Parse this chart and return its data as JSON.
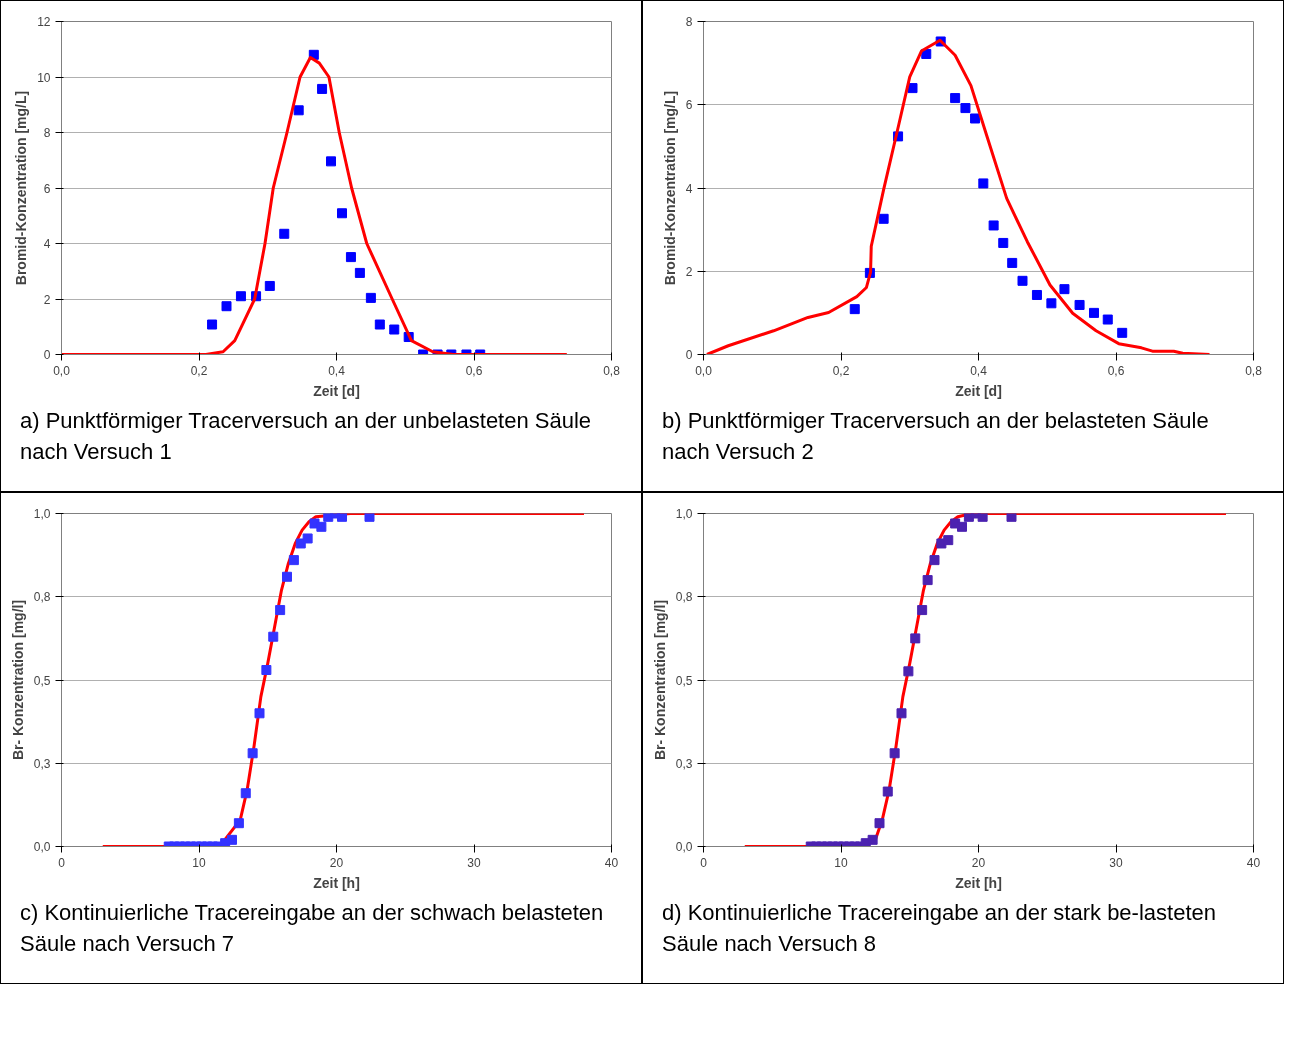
{
  "chart_data": [
    {
      "type": "scatter",
      "xlabel": "Zeit [d]",
      "ylabel": "Bromid-Konzentration [mg/L]",
      "xlim": [
        0,
        0.8
      ],
      "ylim": [
        0,
        12
      ],
      "xticks": [
        {
          "value": 0,
          "label": "0,0"
        },
        {
          "value": 0.2,
          "label": "0,2"
        },
        {
          "value": 0.4,
          "label": "0,4"
        },
        {
          "value": 0.6,
          "label": "0,6"
        },
        {
          "value": 0.8,
          "label": "0,8"
        }
      ],
      "yticks": [
        0,
        2,
        4,
        6,
        8,
        10,
        12
      ],
      "grid": "y",
      "annotations": [
        "a) Punktförmiger Tracerversuch an der unbelasteten Säule nach Versuch 1"
      ],
      "series": [
        {
          "marker": "square",
          "color": "#0000ff",
          "x": [
            0.219,
            0.24,
            0.261,
            0.283,
            0.303,
            0.324,
            0.345,
            0.367,
            0.379,
            0.392,
            0.408,
            0.421,
            0.434,
            0.45,
            0.463,
            0.484,
            0.505,
            0.526,
            0.547,
            0.567,
            0.589,
            0.609
          ],
          "values": [
            1.08,
            1.74,
            2.1,
            2.1,
            2.47,
            4.35,
            8.8,
            10.8,
            9.57,
            6.96,
            5.09,
            3.51,
            2.94,
            2.04,
            1.08,
            0.9,
            0.63,
            0,
            0,
            0,
            0,
            0
          ]
        },
        {
          "type": "line",
          "color": "#ff0000",
          "x": [
            0,
            0.21,
            0.235,
            0.252,
            0.281,
            0.296,
            0.308,
            0.328,
            0.347,
            0.362,
            0.375,
            0.389,
            0.404,
            0.422,
            0.444,
            0.481,
            0.509,
            0.54,
            0.57,
            0.735
          ],
          "values": [
            0,
            0,
            0.1,
            0.5,
            2,
            4,
            6,
            8,
            10,
            10.7,
            10.5,
            10,
            8,
            6,
            4,
            2,
            0.5,
            0.1,
            0,
            0
          ]
        }
      ]
    },
    {
      "type": "scatter",
      "xlabel": "Zeit [d]",
      "ylabel": "Bromid-Konzentration [mg/L]",
      "xlim": [
        0,
        0.8
      ],
      "ylim": [
        0,
        8
      ],
      "xticks": [
        {
          "value": 0,
          "label": "0,0"
        },
        {
          "value": 0.2,
          "label": "0,2"
        },
        {
          "value": 0.4,
          "label": "0,4"
        },
        {
          "value": 0.6,
          "label": "0,6"
        },
        {
          "value": 0.8,
          "label": "0,8"
        }
      ],
      "yticks": [
        0,
        2,
        4,
        6,
        8
      ],
      "grid": "y",
      "annotations": [
        "b) Punktförmiger Tracerversuch an der belasteten Säule nach Versuch 2"
      ],
      "series": [
        {
          "marker": "square",
          "color": "#0000ff",
          "x": [
            0.22,
            0.242,
            0.262,
            0.283,
            0.304,
            0.324,
            0.345,
            0.366,
            0.381,
            0.395,
            0.407,
            0.422,
            0.436,
            0.449,
            0.464,
            0.485,
            0.506,
            0.525,
            0.547,
            0.568,
            0.588,
            0.609
          ],
          "values": [
            1.09,
            1.96,
            3.26,
            5.24,
            6.4,
            7.22,
            7.52,
            6.16,
            5.92,
            5.67,
            4.11,
            3.1,
            2.68,
            2.2,
            1.77,
            1.43,
            1.23,
            1.57,
            1.19,
            1.0,
            0.84,
            0.52
          ]
        },
        {
          "type": "line",
          "color": "#ff0000",
          "x": [
            0.005,
            0.036,
            0.102,
            0.152,
            0.182,
            0.223,
            0.237,
            0.243,
            0.244,
            0.262,
            0.284,
            0.3,
            0.317,
            0.344,
            0.366,
            0.389,
            0.411,
            0.441,
            0.471,
            0.504,
            0.537,
            0.571,
            0.604,
            0.637,
            0.653,
            0.684,
            0.697,
            0.736
          ],
          "values": [
            0,
            0.21,
            0.57,
            0.89,
            1.01,
            1.39,
            1.61,
            1.98,
            2.6,
            3.96,
            5.52,
            6.67,
            7.29,
            7.55,
            7.19,
            6.46,
            5.31,
            3.75,
            2.71,
            1.67,
            0.99,
            0.57,
            0.26,
            0.16,
            0.08,
            0.08,
            0.03,
            0
          ]
        }
      ]
    },
    {
      "type": "scatter",
      "xlabel": "Zeit [h]",
      "ylabel": "Br- Konzentration [mg/l]",
      "xlim": [
        0,
        40
      ],
      "ylim": [
        0,
        1
      ],
      "xticks": [
        0,
        10,
        20,
        30,
        40
      ],
      "yticks": [
        {
          "value": 0,
          "label": "0,0"
        },
        {
          "value": 0.25,
          "label": "0,3"
        },
        {
          "value": 0.5,
          "label": "0,5"
        },
        {
          "value": 0.75,
          "label": "0,8"
        },
        {
          "value": 1,
          "label": "1,0"
        }
      ],
      "grid": "y",
      "annotations": [
        "c) Kontinuierliche Tracereingabe an der schwach belasteten Säule nach Versuch 7"
      ],
      "series": [
        {
          "type": "line",
          "color": "#ff0000",
          "x": [
            3,
            11.5,
            13,
            13.5,
            14,
            14.5,
            15,
            15.5,
            16,
            16.5,
            17,
            17.5,
            18,
            18.5,
            21,
            38
          ],
          "values": [
            0,
            0,
            0.08,
            0.17,
            0.3,
            0.45,
            0.55,
            0.66,
            0.77,
            0.85,
            0.91,
            0.95,
            0.975,
            0.99,
            1,
            1
          ]
        },
        {
          "marker": "square",
          "color": "#3333ff",
          "x": [
            7.8,
            8.2,
            8.6,
            9.0,
            9.4,
            9.8,
            10.2,
            10.6,
            11.0,
            11.4,
            11.9,
            12.4,
            12.9,
            13.4,
            13.9,
            14.4,
            14.9,
            15.4,
            15.9,
            16.4,
            16.9,
            17.4,
            17.9,
            18.4,
            18.9,
            19.4,
            19.9,
            20.4,
            22.4
          ],
          "values": [
            0,
            0,
            0,
            0,
            0,
            0,
            0,
            0,
            0,
            0,
            0.01,
            0.02,
            0.07,
            0.16,
            0.28,
            0.4,
            0.53,
            0.63,
            0.71,
            0.81,
            0.86,
            0.91,
            0.925,
            0.97,
            0.96,
            0.99,
            1.0,
            0.99,
            0.99
          ]
        }
      ]
    },
    {
      "type": "scatter",
      "xlabel": "Zeit [h]",
      "ylabel": "Br- Konzentration [mg/l]",
      "xlim": [
        0,
        40
      ],
      "ylim": [
        0,
        1
      ],
      "xticks": [
        0,
        10,
        20,
        30,
        40
      ],
      "yticks": [
        {
          "value": 0,
          "label": "0,0"
        },
        {
          "value": 0.25,
          "label": "0,3"
        },
        {
          "value": 0.5,
          "label": "0,5"
        },
        {
          "value": 0.75,
          "label": "0,8"
        },
        {
          "value": 1,
          "label": "1,0"
        }
      ],
      "grid": "y",
      "annotations": [
        "d) Kontinuierliche Tracereingabe an der stark be-lasteten Säule nach Versuch 8"
      ],
      "series": [
        {
          "type": "line",
          "color": "#ff0000",
          "x": [
            3,
            11.5,
            12.5,
            13,
            13.5,
            14,
            14.5,
            15,
            15.5,
            16,
            16.5,
            17,
            17.5,
            18,
            18.5,
            19.5,
            38
          ],
          "values": [
            0,
            0,
            0.02,
            0.08,
            0.17,
            0.3,
            0.45,
            0.55,
            0.66,
            0.77,
            0.85,
            0.91,
            0.95,
            0.975,
            0.99,
            1,
            1
          ]
        },
        {
          "marker": "square",
          "color": "#4b22b0",
          "x": [
            7.8,
            8.2,
            8.6,
            9.0,
            9.4,
            9.8,
            10.2,
            10.6,
            11.0,
            11.4,
            11.8,
            12.3,
            12.8,
            13.4,
            13.9,
            14.4,
            14.9,
            15.4,
            15.9,
            16.3,
            16.8,
            17.3,
            17.8,
            18.3,
            18.8,
            19.3,
            19.8,
            20.3,
            22.4
          ],
          "values": [
            0,
            0,
            0,
            0,
            0,
            0,
            0,
            0,
            0,
            0,
            0.01,
            0.02,
            0.07,
            0.165,
            0.28,
            0.4,
            0.526,
            0.625,
            0.71,
            0.8,
            0.86,
            0.91,
            0.92,
            0.97,
            0.96,
            0.99,
            1.0,
            0.99,
            0.99
          ]
        }
      ]
    }
  ]
}
